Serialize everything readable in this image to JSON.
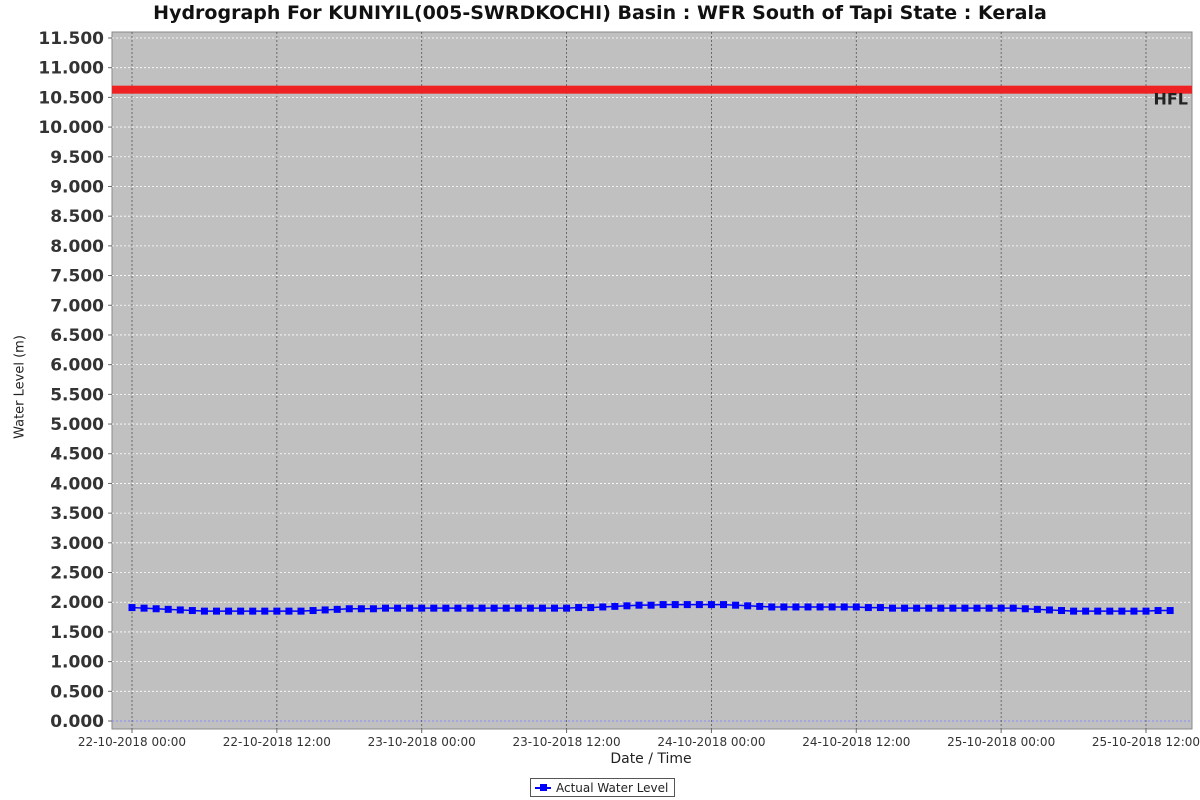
{
  "chart_data": {
    "type": "line",
    "title": "Hydrograph For KUNIYIL(005-SWRDKOCHI) Basin : WFR South of Tapi State : Kerala",
    "xlabel": "Date / Time",
    "ylabel": "Water Level (m)",
    "ylim": [
      0,
      11.5
    ],
    "y_ticks": [
      "0.000",
      "0.500",
      "1.000",
      "1.500",
      "2.000",
      "2.500",
      "3.000",
      "3.500",
      "4.000",
      "4.500",
      "5.000",
      "5.500",
      "6.000",
      "6.500",
      "7.000",
      "7.500",
      "8.000",
      "8.500",
      "9.000",
      "9.500",
      "10.000",
      "10.500",
      "11.000",
      "11.500"
    ],
    "x_range_hours": [
      "22-10-2018 00:00",
      "25-10-2018 12:00"
    ],
    "x_ticks": [
      "22-10-2018 00:00",
      "22-10-2018 12:00",
      "23-10-2018 00:00",
      "23-10-2018 12:00",
      "24-10-2018 00:00",
      "24-10-2018 12:00",
      "25-10-2018 00:00",
      "25-10-2018 12:00"
    ],
    "grid": true,
    "legend_position": "bottom-center",
    "hfl": {
      "label": "HFL",
      "value": 10.63,
      "color": "#ee2222"
    },
    "series": [
      {
        "name": "Actual Water Level",
        "color": "#0000ff",
        "x": [
          "22-10-2018 00:00",
          "22-10-2018 01:00",
          "22-10-2018 02:00",
          "22-10-2018 03:00",
          "22-10-2018 04:00",
          "22-10-2018 05:00",
          "22-10-2018 06:00",
          "22-10-2018 07:00",
          "22-10-2018 08:00",
          "22-10-2018 09:00",
          "22-10-2018 10:00",
          "22-10-2018 11:00",
          "22-10-2018 12:00",
          "22-10-2018 13:00",
          "22-10-2018 14:00",
          "22-10-2018 15:00",
          "22-10-2018 16:00",
          "22-10-2018 17:00",
          "22-10-2018 18:00",
          "22-10-2018 19:00",
          "22-10-2018 20:00",
          "22-10-2018 21:00",
          "22-10-2018 22:00",
          "22-10-2018 23:00",
          "23-10-2018 00:00",
          "23-10-2018 01:00",
          "23-10-2018 02:00",
          "23-10-2018 03:00",
          "23-10-2018 04:00",
          "23-10-2018 05:00",
          "23-10-2018 06:00",
          "23-10-2018 07:00",
          "23-10-2018 08:00",
          "23-10-2018 09:00",
          "23-10-2018 10:00",
          "23-10-2018 11:00",
          "23-10-2018 12:00",
          "23-10-2018 13:00",
          "23-10-2018 14:00",
          "23-10-2018 15:00",
          "23-10-2018 16:00",
          "23-10-2018 17:00",
          "23-10-2018 18:00",
          "23-10-2018 19:00",
          "23-10-2018 20:00",
          "23-10-2018 21:00",
          "23-10-2018 22:00",
          "23-10-2018 23:00",
          "24-10-2018 00:00",
          "24-10-2018 01:00",
          "24-10-2018 02:00",
          "24-10-2018 03:00",
          "24-10-2018 04:00",
          "24-10-2018 05:00",
          "24-10-2018 06:00",
          "24-10-2018 07:00",
          "24-10-2018 08:00",
          "24-10-2018 09:00",
          "24-10-2018 10:00",
          "24-10-2018 11:00",
          "24-10-2018 12:00",
          "24-10-2018 13:00",
          "24-10-2018 14:00",
          "24-10-2018 15:00",
          "24-10-2018 16:00",
          "24-10-2018 17:00",
          "24-10-2018 18:00",
          "24-10-2018 19:00",
          "24-10-2018 20:00",
          "24-10-2018 21:00",
          "24-10-2018 22:00",
          "24-10-2018 23:00",
          "25-10-2018 00:00",
          "25-10-2018 01:00",
          "25-10-2018 02:00",
          "25-10-2018 03:00",
          "25-10-2018 04:00",
          "25-10-2018 05:00",
          "25-10-2018 06:00",
          "25-10-2018 07:00",
          "25-10-2018 08:00",
          "25-10-2018 09:00",
          "25-10-2018 10:00",
          "25-10-2018 11:00",
          "25-10-2018 12:00",
          "25-10-2018 13:00",
          "25-10-2018 14:00"
        ],
        "values": [
          1.91,
          1.9,
          1.89,
          1.88,
          1.87,
          1.86,
          1.85,
          1.85,
          1.85,
          1.85,
          1.85,
          1.85,
          1.85,
          1.85,
          1.85,
          1.86,
          1.87,
          1.88,
          1.89,
          1.89,
          1.89,
          1.9,
          1.9,
          1.9,
          1.9,
          1.9,
          1.9,
          1.9,
          1.9,
          1.9,
          1.9,
          1.9,
          1.9,
          1.9,
          1.9,
          1.9,
          1.9,
          1.91,
          1.91,
          1.92,
          1.93,
          1.94,
          1.95,
          1.95,
          1.96,
          1.96,
          1.96,
          1.96,
          1.96,
          1.96,
          1.95,
          1.94,
          1.93,
          1.92,
          1.92,
          1.92,
          1.92,
          1.92,
          1.92,
          1.92,
          1.92,
          1.91,
          1.91,
          1.9,
          1.9,
          1.9,
          1.9,
          1.9,
          1.9,
          1.9,
          1.9,
          1.9,
          1.9,
          1.9,
          1.89,
          1.88,
          1.87,
          1.86,
          1.85,
          1.85,
          1.85,
          1.85,
          1.85,
          1.85,
          1.85,
          1.86,
          1.86
        ]
      }
    ]
  }
}
